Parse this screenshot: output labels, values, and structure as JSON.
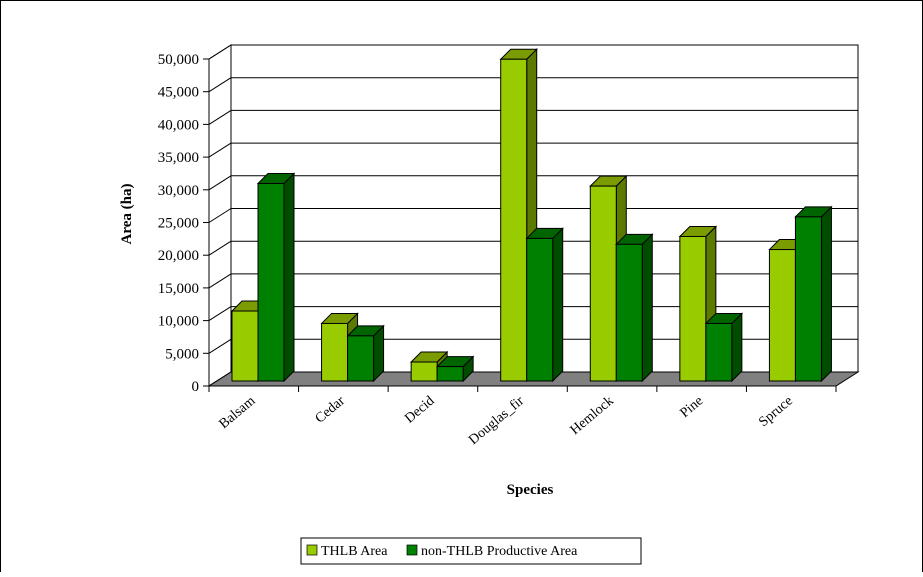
{
  "chart_data": {
    "type": "bar",
    "categories": [
      "Balsam",
      "Cedar",
      "Decid",
      "Douglas_fir",
      "Hemlock",
      "Pine",
      "Spruce"
    ],
    "series": [
      {
        "name": "THLB Area",
        "values": [
          10700,
          8800,
          2900,
          49200,
          29800,
          22100,
          20100
        ]
      },
      {
        "name": "non-THLB Productive Area",
        "values": [
          30200,
          6900,
          2200,
          21800,
          20900,
          8800,
          25100
        ]
      }
    ],
    "xlabel": "Species",
    "ylabel": "Area (ha)",
    "ylim": [
      0,
      50000
    ],
    "yticks": [
      "0",
      "5,000",
      "10,000",
      "15,000",
      "20,000",
      "25,000",
      "30,000",
      "35,000",
      "40,000",
      "45,000",
      "50,000"
    ],
    "grid": true,
    "legend_position": "bottom",
    "three_d": true
  },
  "colors": {
    "thlb_front": "#99cc00",
    "thlb_top": "#7a9c00",
    "thlb_side": "#5c7a00",
    "nonthlb_front": "#008000",
    "nonthlb_top": "#006400",
    "nonthlb_side": "#004d00",
    "floor": "#808080",
    "gridline": "#000000"
  }
}
